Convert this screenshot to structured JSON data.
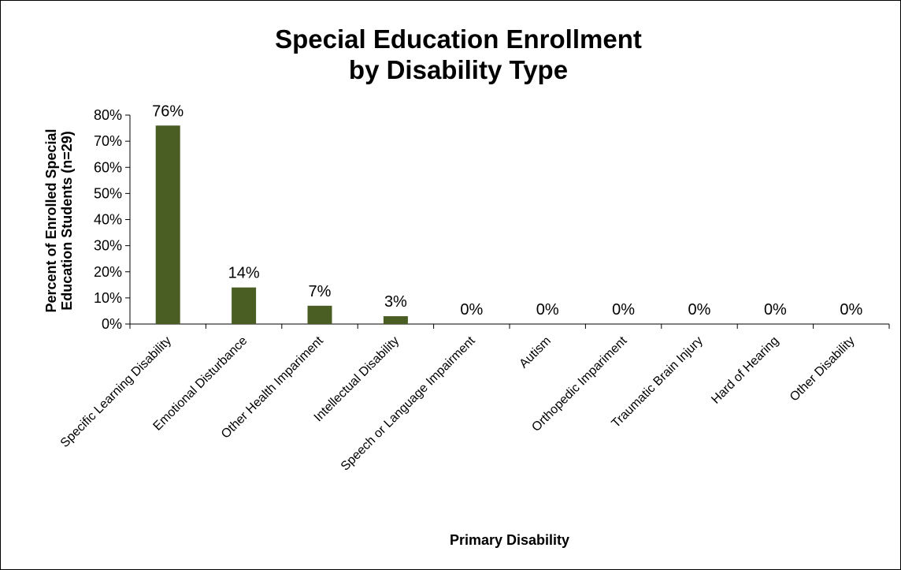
{
  "chart_data": {
    "type": "bar",
    "title_lines": [
      "Special Education Enrollment",
      "by Disability Type"
    ],
    "xlabel": "Primary Disability",
    "ylabel_lines": [
      "Percent of Enrolled Special",
      "Education Students (n=29)"
    ],
    "ylim": [
      0,
      80
    ],
    "yticks": [
      0,
      10,
      20,
      30,
      40,
      50,
      60,
      70,
      80
    ],
    "ytick_labels": [
      "0%",
      "10%",
      "20%",
      "30%",
      "40%",
      "50%",
      "60%",
      "70%",
      "80%"
    ],
    "grid": false,
    "legend": "none",
    "bar_color": "#4a5e23",
    "categories": [
      "Specific Learning Disability",
      "Emotional Disturbance",
      "Other Health Impariment",
      "Intellectual Disability",
      "Speech or Language Impairment",
      "Autism",
      "Orthopedic Impariment",
      "Traumatic Brain Injury",
      "Hard of Hearing",
      "Other Disability"
    ],
    "values": [
      76,
      14,
      7,
      3,
      0,
      0,
      0,
      0,
      0,
      0
    ],
    "data_labels": [
      "76%",
      "14%",
      "7%",
      "3%",
      "0%",
      "0%",
      "0%",
      "0%",
      "0%",
      "0%"
    ]
  }
}
